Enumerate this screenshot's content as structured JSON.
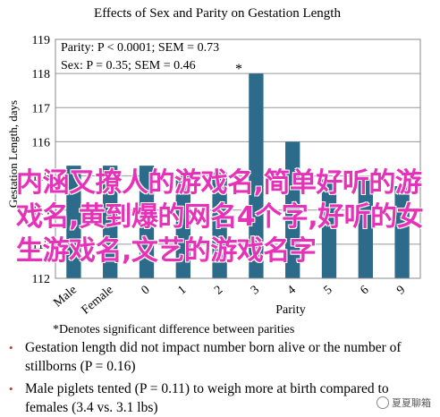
{
  "chart_data": {
    "type": "bar",
    "title": "Effects of Sex and Parity on Gestation Length",
    "ylabel": "Gestation Length, days",
    "xlabel": "Parity",
    "ylim": [
      112,
      119
    ],
    "yticks": [
      "112",
      "113",
      "114",
      "115",
      "116",
      "117",
      "118",
      "119"
    ],
    "categories": [
      "Male",
      "Female",
      "0",
      "1",
      "2",
      "3",
      "4",
      "5",
      "6",
      "9"
    ],
    "values": [
      115.3,
      115.3,
      115.3,
      115.0,
      115.1,
      118.0,
      116.0,
      114.9,
      114.9,
      114.7
    ],
    "bar_color": "#2c6b8a",
    "annotations": {
      "parity_stat": "Parity: P < 0.0001; SEM = 0.73",
      "sex_stat": "Sex: P = 0.35; SEM = 0.46",
      "star": "*"
    }
  },
  "footnote": "*Denotes significant difference between parities",
  "notes": [
    "Gestation length did not impact number born alive or the number of stillborns (P = 0.16)",
    "Male piglets tented (P = 0.11) to weigh more at birth compared to females (3.4 vs. 3.1 lbs)"
  ],
  "overlay_text": "内涵又撩人的游戏名,简单好听的游戏名,黄到爆的网名4个字,好听的女生游戏名,文艺的游戏名字",
  "watermark": "夏夏聊箱"
}
